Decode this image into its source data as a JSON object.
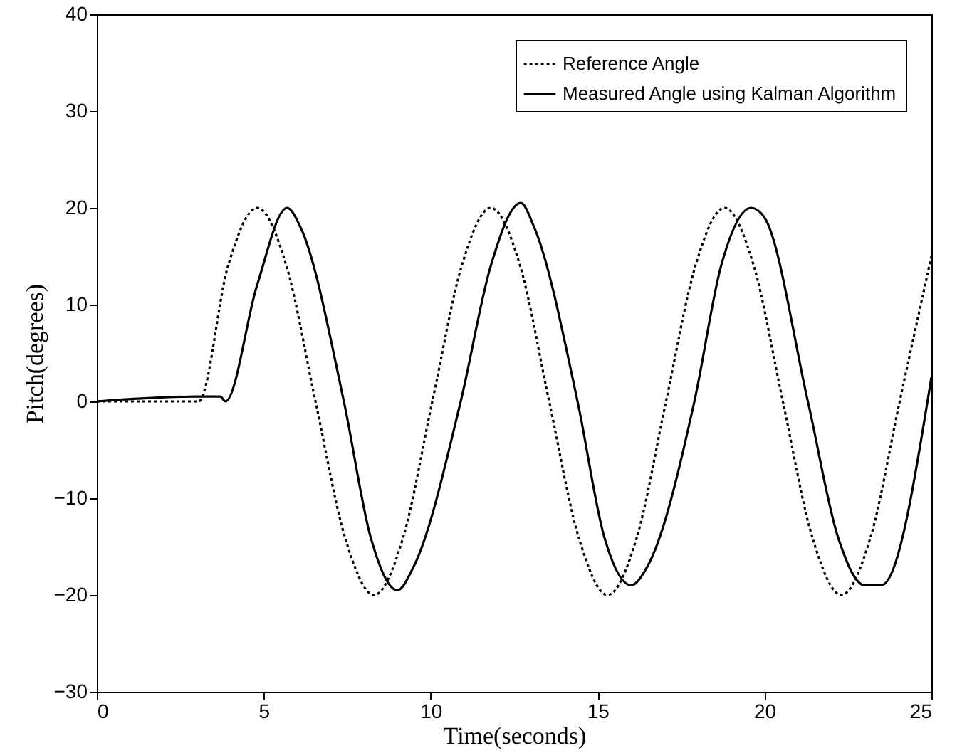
{
  "chart_data": {
    "type": "line",
    "xlabel": "Time(seconds)",
    "ylabel": "Pitch(degrees)",
    "xlim": [
      0,
      25
    ],
    "ylim": [
      -30,
      40
    ],
    "xticks": [
      0,
      5,
      10,
      15,
      20,
      25
    ],
    "yticks": [
      -30,
      -20,
      -10,
      0,
      10,
      20,
      30,
      40
    ],
    "grid": false,
    "legend": "top right",
    "marker": "none",
    "series": [
      {
        "name": "Reference Angle",
        "color": "#000000",
        "line_style": "dotted",
        "x": [
          0,
          1,
          2,
          3.05,
          3.93,
          4.8,
          5.68,
          6.55,
          7.43,
          8.3,
          9.18,
          10.05,
          10.93,
          11.8,
          12.68,
          13.55,
          14.43,
          15.3,
          16.18,
          17.05,
          17.93,
          18.8,
          19.68,
          20.55,
          21.43,
          22.3,
          23.18,
          24.05,
          25
        ],
        "values": [
          0,
          0,
          0,
          0,
          14,
          20,
          14,
          0,
          -14,
          -20,
          -14,
          0,
          14,
          20,
          14,
          0,
          -14,
          -20,
          -14,
          0,
          14,
          20,
          14,
          0,
          -14,
          -20,
          -14,
          0,
          15
        ]
      },
      {
        "name": "Measured Angle using Kalman Algorithm",
        "color": "#000000",
        "line_style": "solid",
        "x": [
          0,
          3.0,
          3.7,
          3.85,
          4.8,
          5.7,
          6.1,
          7.4,
          8.2,
          9.0,
          9.5,
          10.9,
          11.8,
          12.7,
          13.1,
          14.4,
          15.2,
          16.0,
          16.5,
          17.9,
          18.7,
          19.6,
          20.0,
          21.3,
          22.2,
          23.0,
          23.5,
          25
        ],
        "values": [
          0,
          0.5,
          0.5,
          0,
          12,
          20,
          18,
          0,
          -14,
          -19.5,
          -17,
          0,
          14,
          20.5,
          18,
          0,
          -14,
          -19,
          -17,
          0,
          14,
          20,
          19,
          0,
          -14,
          -19,
          -19,
          2.5
        ]
      }
    ]
  }
}
